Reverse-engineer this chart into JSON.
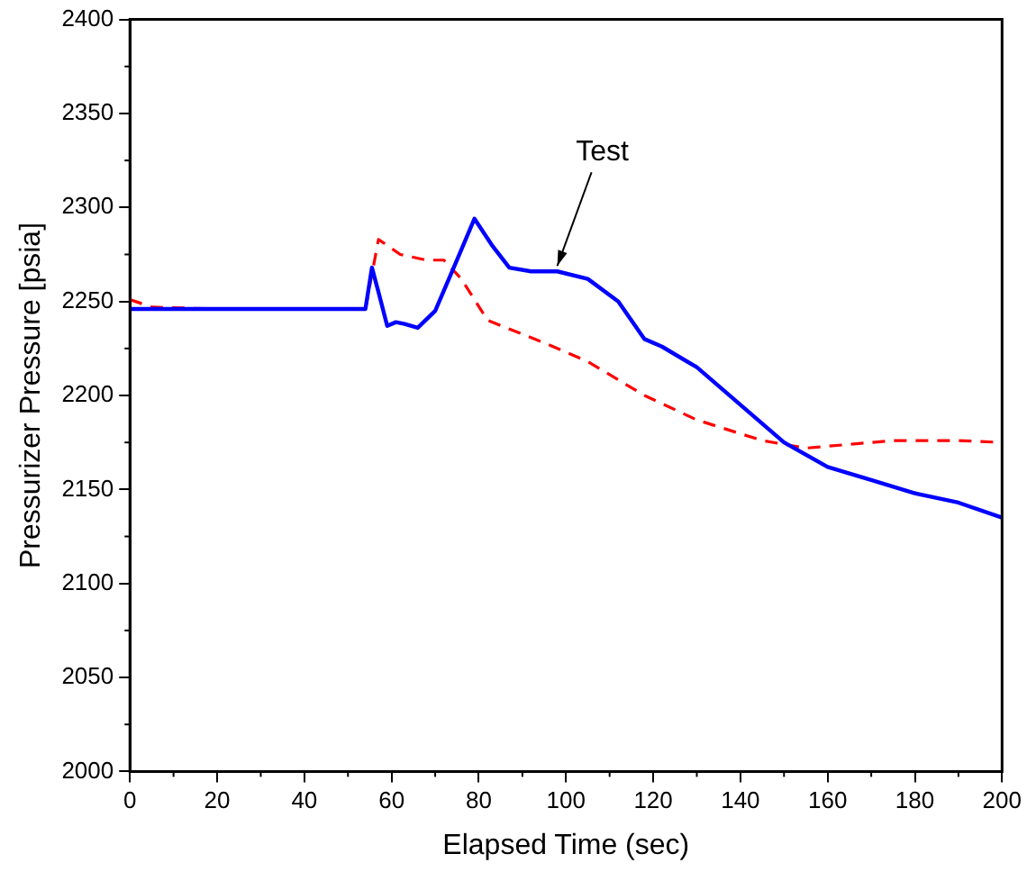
{
  "chart_data": {
    "type": "line",
    "xlabel": "Elapsed Time (sec)",
    "ylabel": "Pressurizer Pressure [psia]",
    "xlim": [
      0,
      200
    ],
    "xticks": [
      0,
      20,
      40,
      60,
      80,
      100,
      120,
      140,
      160,
      180,
      200
    ],
    "ylim": [
      2000,
      2400
    ],
    "yticks": [
      2000,
      2050,
      2100,
      2150,
      2200,
      2250,
      2300,
      2350,
      2400
    ],
    "grid": false,
    "legend": false,
    "marker": "none",
    "series": [
      {
        "color": "#0000ff",
        "line_style": "solid",
        "x": [
          0,
          10,
          20,
          30,
          40,
          50,
          54,
          55.5,
          57,
          59,
          61,
          63,
          66,
          70,
          75,
          79,
          83,
          87,
          92,
          98,
          105,
          112,
          118,
          122,
          130,
          140,
          150,
          160,
          170,
          180,
          190,
          200
        ],
        "values": [
          2246,
          2246,
          2246,
          2246,
          2246,
          2246,
          2246,
          2268,
          2255,
          2237,
          2239,
          2238,
          2236,
          2245,
          2272,
          2294,
          2280,
          2268,
          2266,
          2266,
          2262,
          2250,
          2230,
          2226,
          2215,
          2195,
          2175,
          2162,
          2155,
          2148,
          2143,
          2135
        ]
      },
      {
        "color": "#ff0000",
        "line_style": "dashed",
        "x": [
          0,
          5,
          20,
          40,
          54,
          57,
          62,
          68,
          72,
          76,
          82,
          95,
          105,
          118,
          130,
          145,
          155,
          165,
          175,
          190,
          200
        ],
        "values": [
          2251,
          2247,
          2246,
          2246,
          2246,
          2283,
          2275,
          2272,
          2272,
          2262,
          2240,
          2228,
          2218,
          2200,
          2187,
          2176,
          2172,
          2174,
          2176,
          2176,
          2175
        ]
      }
    ],
    "annotations": [
      {
        "text": "Test",
        "x": 98,
        "y": 2266
      }
    ]
  }
}
